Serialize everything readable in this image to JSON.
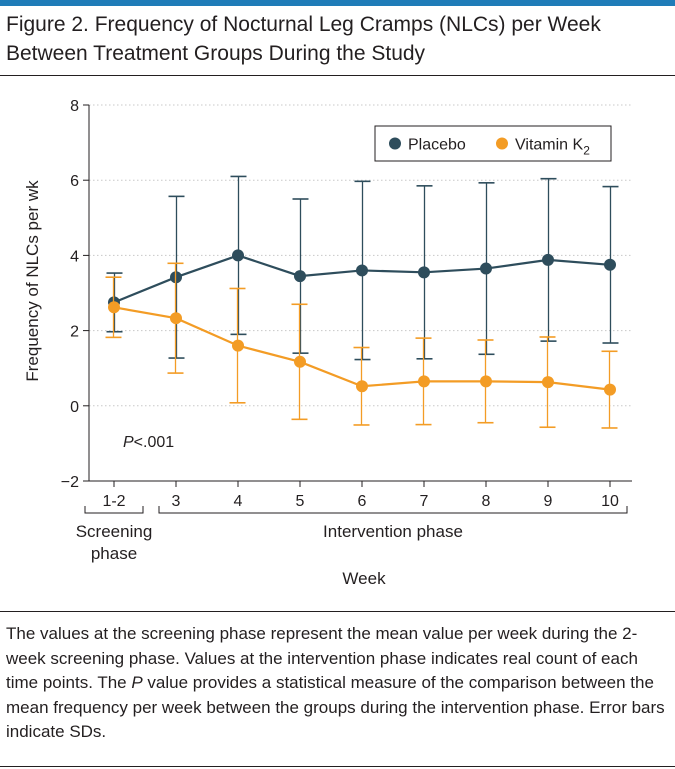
{
  "figure": {
    "title": "Figure 2. Frequency of Nocturnal Leg Cramps (NLCs) per Week Between Treatment Groups During the Study",
    "caption_parts": [
      "The values at the screening phase represent the mean value per week during the 2-week screening phase. Values at the intervention phase indicates real count of each time points. The ",
      "P",
      " value provides a statistical measure of the comparison between the mean frequency per week between the groups during the intervention phase. Error bars indicate SDs."
    ]
  },
  "chart_data": {
    "type": "line",
    "ylabel": "Frequency of NLCs per wk",
    "xlabel": "Week",
    "categories": [
      "1-2",
      "3",
      "4",
      "5",
      "6",
      "7",
      "8",
      "9",
      "10"
    ],
    "ylim": [
      -2,
      8
    ],
    "yticks": [
      -2,
      0,
      2,
      4,
      6,
      8
    ],
    "phases": [
      {
        "label_lines": [
          "Screening",
          "phase"
        ],
        "from": "1-2",
        "to": "1-2"
      },
      {
        "label_lines": [
          "Intervention phase"
        ],
        "from": "3",
        "to": "10"
      }
    ],
    "annotation": {
      "italic": "P",
      "text": "<.001"
    },
    "legend_position": "top-right",
    "series": [
      {
        "name": "Placebo",
        "color": "#2e4d5c",
        "values": [
          2.75,
          3.42,
          4.0,
          3.45,
          3.6,
          3.55,
          3.65,
          3.88,
          3.75
        ],
        "sd": [
          0.78,
          2.15,
          2.1,
          2.05,
          2.37,
          2.3,
          2.28,
          2.16,
          2.08
        ]
      },
      {
        "name": "Vitamin K",
        "name_subscript": "2",
        "color": "#f39c25",
        "values": [
          2.62,
          2.33,
          1.6,
          1.17,
          0.52,
          0.65,
          0.65,
          0.63,
          0.43
        ],
        "sd": [
          0.8,
          1.46,
          1.52,
          1.53,
          1.03,
          1.15,
          1.1,
          1.2,
          1.02
        ]
      }
    ]
  }
}
